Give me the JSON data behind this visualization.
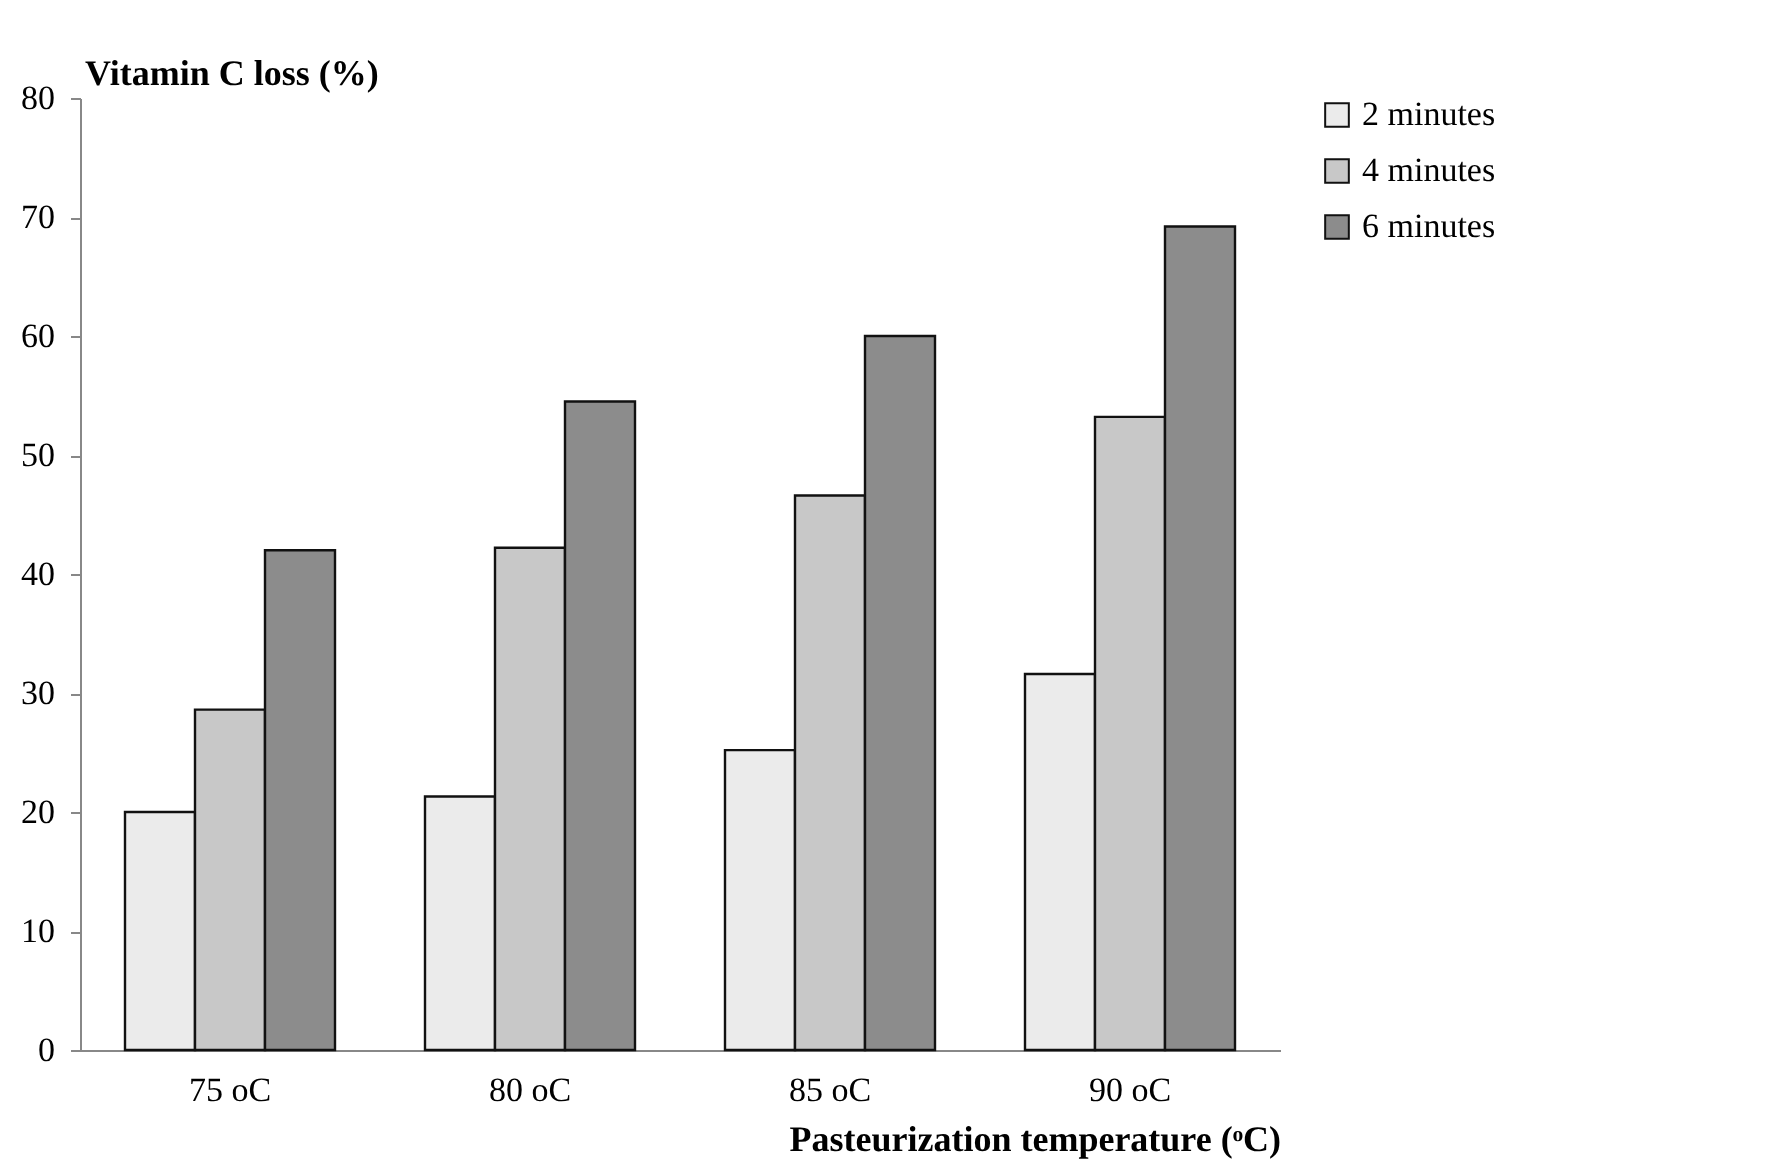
{
  "chart_data": {
    "type": "bar",
    "xlabel": "Pasteurization temperature (ᵒC)",
    "ylabel": "Vitamin C loss (%)",
    "categories": [
      "75 oC",
      "80 oC",
      "85 oC",
      "90 oC"
    ],
    "series": [
      {
        "name": "2 minutes",
        "color": "#ebebeb",
        "values": [
          20,
          21.3,
          25.2,
          31.6
        ]
      },
      {
        "name": "4 minutes",
        "color": "#c8c8c8",
        "values": [
          28.6,
          42.2,
          46.6,
          53.2
        ]
      },
      {
        "name": "6 minutes",
        "color": "#8c8c8c",
        "values": [
          42,
          54.5,
          60,
          69.2
        ]
      }
    ],
    "ylim": [
      0,
      80
    ],
    "yticks": [
      0,
      10,
      20,
      30,
      40,
      50,
      60,
      70,
      80
    ],
    "grid": false,
    "legend": "right"
  }
}
